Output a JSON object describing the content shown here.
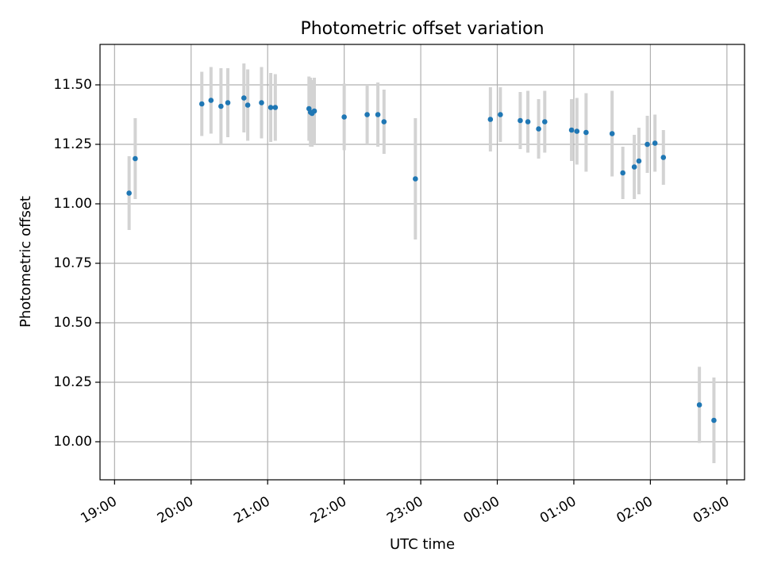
{
  "chart_data": {
    "type": "scatter",
    "title": "Photometric offset variation",
    "xlabel": "UTC time",
    "ylabel": "Photometric offset",
    "x_unit": "hours since 19:00 UTC",
    "xlim": [
      -0.19,
      8.23
    ],
    "ylim": [
      9.84,
      11.67
    ],
    "grid": true,
    "colors": {
      "point": "#1f77b4",
      "errorbar": "#d3d3d3",
      "grid": "#b0b0b0"
    },
    "x_ticks": [
      {
        "v": 0,
        "label": "19:00"
      },
      {
        "v": 1,
        "label": "20:00"
      },
      {
        "v": 2,
        "label": "21:00"
      },
      {
        "v": 3,
        "label": "22:00"
      },
      {
        "v": 4,
        "label": "23:00"
      },
      {
        "v": 5,
        "label": "00:00"
      },
      {
        "v": 6,
        "label": "01:00"
      },
      {
        "v": 7,
        "label": "02:00"
      },
      {
        "v": 8,
        "label": "03:00"
      }
    ],
    "y_ticks": [
      {
        "v": 10.0,
        "label": "10.00"
      },
      {
        "v": 10.25,
        "label": "10.25"
      },
      {
        "v": 10.5,
        "label": "10.50"
      },
      {
        "v": 10.75,
        "label": "10.75"
      },
      {
        "v": 11.0,
        "label": "11.00"
      },
      {
        "v": 11.25,
        "label": "11.25"
      },
      {
        "v": 11.5,
        "label": "11.50"
      }
    ],
    "points": [
      {
        "x": 0.19,
        "y": 11.045,
        "err": 0.155
      },
      {
        "x": 0.27,
        "y": 11.19,
        "err": 0.17
      },
      {
        "x": 1.14,
        "y": 11.42,
        "err": 0.135
      },
      {
        "x": 1.26,
        "y": 11.435,
        "err": 0.14
      },
      {
        "x": 1.39,
        "y": 11.41,
        "err": 0.16
      },
      {
        "x": 1.48,
        "y": 11.425,
        "err": 0.145
      },
      {
        "x": 1.69,
        "y": 11.445,
        "err": 0.145
      },
      {
        "x": 1.74,
        "y": 11.415,
        "err": 0.15
      },
      {
        "x": 1.92,
        "y": 11.425,
        "err": 0.15
      },
      {
        "x": 2.04,
        "y": 11.405,
        "err": 0.145
      },
      {
        "x": 2.1,
        "y": 11.405,
        "err": 0.14
      },
      {
        "x": 2.54,
        "y": 11.4,
        "err": 0.135
      },
      {
        "x": 2.56,
        "y": 11.385,
        "err": 0.145
      },
      {
        "x": 2.58,
        "y": 11.38,
        "err": 0.14
      },
      {
        "x": 2.61,
        "y": 11.39,
        "err": 0.14
      },
      {
        "x": 3.0,
        "y": 11.365,
        "err": 0.14
      },
      {
        "x": 3.3,
        "y": 11.375,
        "err": 0.125
      },
      {
        "x": 3.44,
        "y": 11.375,
        "err": 0.135
      },
      {
        "x": 3.52,
        "y": 11.345,
        "err": 0.135
      },
      {
        "x": 3.93,
        "y": 11.105,
        "err": 0.255
      },
      {
        "x": 4.91,
        "y": 11.355,
        "err": 0.135
      },
      {
        "x": 5.04,
        "y": 11.375,
        "err": 0.115
      },
      {
        "x": 5.3,
        "y": 11.35,
        "err": 0.12
      },
      {
        "x": 5.4,
        "y": 11.345,
        "err": 0.13
      },
      {
        "x": 5.54,
        "y": 11.315,
        "err": 0.125
      },
      {
        "x": 5.62,
        "y": 11.345,
        "err": 0.13
      },
      {
        "x": 5.97,
        "y": 11.31,
        "err": 0.13
      },
      {
        "x": 6.04,
        "y": 11.305,
        "err": 0.14
      },
      {
        "x": 6.16,
        "y": 11.3,
        "err": 0.165
      },
      {
        "x": 6.5,
        "y": 11.295,
        "err": 0.18
      },
      {
        "x": 6.64,
        "y": 11.13,
        "err": 0.11
      },
      {
        "x": 6.79,
        "y": 11.155,
        "err": 0.135
      },
      {
        "x": 6.85,
        "y": 11.18,
        "err": 0.14
      },
      {
        "x": 6.96,
        "y": 11.25,
        "err": 0.12
      },
      {
        "x": 7.06,
        "y": 11.255,
        "err": 0.12
      },
      {
        "x": 7.17,
        "y": 11.195,
        "err": 0.115
      },
      {
        "x": 7.64,
        "y": 10.155,
        "err": 0.16
      },
      {
        "x": 7.83,
        "y": 10.09,
        "err": 0.18
      }
    ]
  }
}
